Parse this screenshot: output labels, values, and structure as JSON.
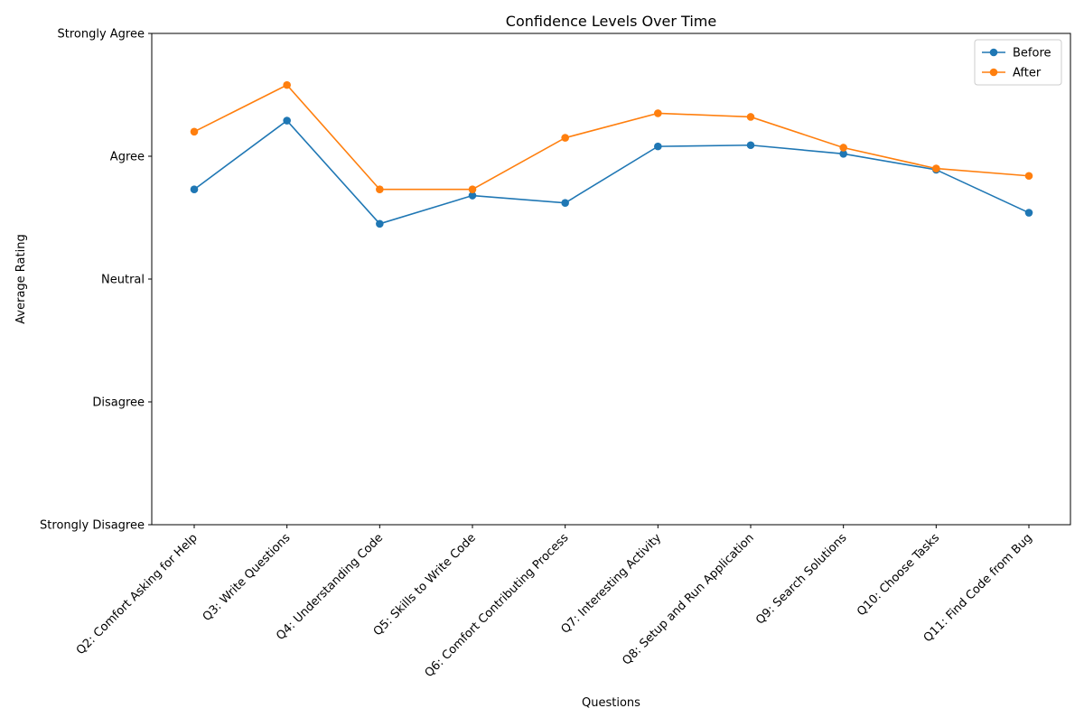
{
  "chart_data": {
    "type": "line",
    "title": "Confidence Levels Over Time",
    "xlabel": "Questions",
    "ylabel": "Average Rating",
    "categories": [
      "Q2: Comfort Asking for Help",
      "Q3: Write Questions",
      "Q4: Understanding Code",
      "Q5: Skills to Write Code",
      "Q6: Comfort Contributing Process",
      "Q7: Interesting Activity",
      "Q8: Setup and Run Application",
      "Q9: Search Solutions",
      "Q10: Choose Tasks",
      "Q11: Find Code from Bug"
    ],
    "y_tick_labels": [
      "Strongly Disagree",
      "Disagree",
      "Neutral",
      "Agree",
      "Strongly Agree"
    ],
    "ylim": [
      1,
      5
    ],
    "grid": false,
    "legend_position": "top-right",
    "series": [
      {
        "name": "Before",
        "color": "#1f77b4",
        "values": [
          3.73,
          4.29,
          3.45,
          3.68,
          3.62,
          4.08,
          4.09,
          4.02,
          3.89,
          3.54
        ]
      },
      {
        "name": "After",
        "color": "#ff7f0e",
        "values": [
          4.2,
          4.58,
          3.73,
          3.73,
          4.15,
          4.35,
          4.32,
          4.07,
          3.9,
          3.84
        ]
      }
    ]
  }
}
